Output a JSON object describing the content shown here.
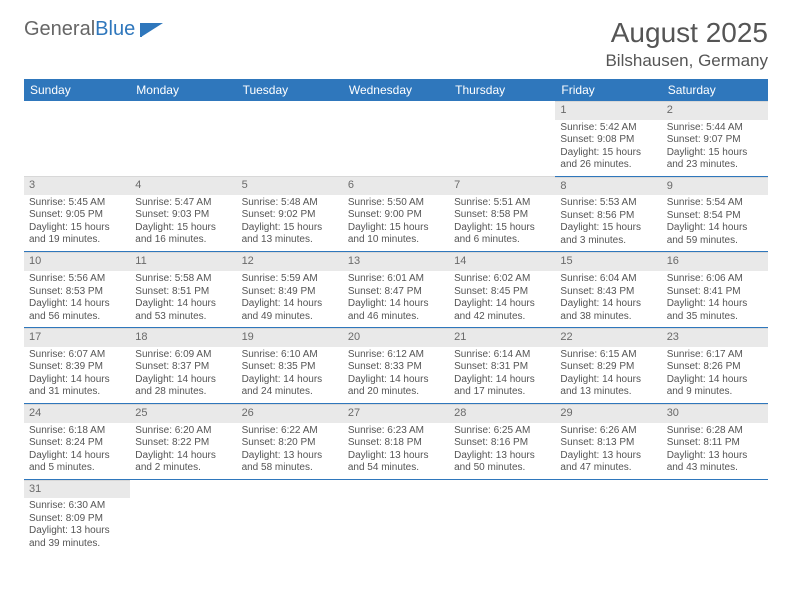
{
  "logo": {
    "text1": "General",
    "text2": "Blue"
  },
  "title": "August 2025",
  "location": "Bilshausen, Germany",
  "colors": {
    "header_bg": "#2f77bc",
    "header_fg": "#ffffff",
    "daynum_bg": "#e9e9e9",
    "row_divider": "#2f77bc",
    "text": "#555555"
  },
  "weekdays": [
    "Sunday",
    "Monday",
    "Tuesday",
    "Wednesday",
    "Thursday",
    "Friday",
    "Saturday"
  ],
  "weeks": [
    [
      null,
      null,
      null,
      null,
      null,
      {
        "n": "1",
        "sr": "Sunrise: 5:42 AM",
        "ss": "Sunset: 9:08 PM",
        "d1": "Daylight: 15 hours",
        "d2": "and 26 minutes."
      },
      {
        "n": "2",
        "sr": "Sunrise: 5:44 AM",
        "ss": "Sunset: 9:07 PM",
        "d1": "Daylight: 15 hours",
        "d2": "and 23 minutes."
      }
    ],
    [
      {
        "n": "3",
        "sr": "Sunrise: 5:45 AM",
        "ss": "Sunset: 9:05 PM",
        "d1": "Daylight: 15 hours",
        "d2": "and 19 minutes."
      },
      {
        "n": "4",
        "sr": "Sunrise: 5:47 AM",
        "ss": "Sunset: 9:03 PM",
        "d1": "Daylight: 15 hours",
        "d2": "and 16 minutes."
      },
      {
        "n": "5",
        "sr": "Sunrise: 5:48 AM",
        "ss": "Sunset: 9:02 PM",
        "d1": "Daylight: 15 hours",
        "d2": "and 13 minutes."
      },
      {
        "n": "6",
        "sr": "Sunrise: 5:50 AM",
        "ss": "Sunset: 9:00 PM",
        "d1": "Daylight: 15 hours",
        "d2": "and 10 minutes."
      },
      {
        "n": "7",
        "sr": "Sunrise: 5:51 AM",
        "ss": "Sunset: 8:58 PM",
        "d1": "Daylight: 15 hours",
        "d2": "and 6 minutes."
      },
      {
        "n": "8",
        "sr": "Sunrise: 5:53 AM",
        "ss": "Sunset: 8:56 PM",
        "d1": "Daylight: 15 hours",
        "d2": "and 3 minutes."
      },
      {
        "n": "9",
        "sr": "Sunrise: 5:54 AM",
        "ss": "Sunset: 8:54 PM",
        "d1": "Daylight: 14 hours",
        "d2": "and 59 minutes."
      }
    ],
    [
      {
        "n": "10",
        "sr": "Sunrise: 5:56 AM",
        "ss": "Sunset: 8:53 PM",
        "d1": "Daylight: 14 hours",
        "d2": "and 56 minutes."
      },
      {
        "n": "11",
        "sr": "Sunrise: 5:58 AM",
        "ss": "Sunset: 8:51 PM",
        "d1": "Daylight: 14 hours",
        "d2": "and 53 minutes."
      },
      {
        "n": "12",
        "sr": "Sunrise: 5:59 AM",
        "ss": "Sunset: 8:49 PM",
        "d1": "Daylight: 14 hours",
        "d2": "and 49 minutes."
      },
      {
        "n": "13",
        "sr": "Sunrise: 6:01 AM",
        "ss": "Sunset: 8:47 PM",
        "d1": "Daylight: 14 hours",
        "d2": "and 46 minutes."
      },
      {
        "n": "14",
        "sr": "Sunrise: 6:02 AM",
        "ss": "Sunset: 8:45 PM",
        "d1": "Daylight: 14 hours",
        "d2": "and 42 minutes."
      },
      {
        "n": "15",
        "sr": "Sunrise: 6:04 AM",
        "ss": "Sunset: 8:43 PM",
        "d1": "Daylight: 14 hours",
        "d2": "and 38 minutes."
      },
      {
        "n": "16",
        "sr": "Sunrise: 6:06 AM",
        "ss": "Sunset: 8:41 PM",
        "d1": "Daylight: 14 hours",
        "d2": "and 35 minutes."
      }
    ],
    [
      {
        "n": "17",
        "sr": "Sunrise: 6:07 AM",
        "ss": "Sunset: 8:39 PM",
        "d1": "Daylight: 14 hours",
        "d2": "and 31 minutes."
      },
      {
        "n": "18",
        "sr": "Sunrise: 6:09 AM",
        "ss": "Sunset: 8:37 PM",
        "d1": "Daylight: 14 hours",
        "d2": "and 28 minutes."
      },
      {
        "n": "19",
        "sr": "Sunrise: 6:10 AM",
        "ss": "Sunset: 8:35 PM",
        "d1": "Daylight: 14 hours",
        "d2": "and 24 minutes."
      },
      {
        "n": "20",
        "sr": "Sunrise: 6:12 AM",
        "ss": "Sunset: 8:33 PM",
        "d1": "Daylight: 14 hours",
        "d2": "and 20 minutes."
      },
      {
        "n": "21",
        "sr": "Sunrise: 6:14 AM",
        "ss": "Sunset: 8:31 PM",
        "d1": "Daylight: 14 hours",
        "d2": "and 17 minutes."
      },
      {
        "n": "22",
        "sr": "Sunrise: 6:15 AM",
        "ss": "Sunset: 8:29 PM",
        "d1": "Daylight: 14 hours",
        "d2": "and 13 minutes."
      },
      {
        "n": "23",
        "sr": "Sunrise: 6:17 AM",
        "ss": "Sunset: 8:26 PM",
        "d1": "Daylight: 14 hours",
        "d2": "and 9 minutes."
      }
    ],
    [
      {
        "n": "24",
        "sr": "Sunrise: 6:18 AM",
        "ss": "Sunset: 8:24 PM",
        "d1": "Daylight: 14 hours",
        "d2": "and 5 minutes."
      },
      {
        "n": "25",
        "sr": "Sunrise: 6:20 AM",
        "ss": "Sunset: 8:22 PM",
        "d1": "Daylight: 14 hours",
        "d2": "and 2 minutes."
      },
      {
        "n": "26",
        "sr": "Sunrise: 6:22 AM",
        "ss": "Sunset: 8:20 PM",
        "d1": "Daylight: 13 hours",
        "d2": "and 58 minutes."
      },
      {
        "n": "27",
        "sr": "Sunrise: 6:23 AM",
        "ss": "Sunset: 8:18 PM",
        "d1": "Daylight: 13 hours",
        "d2": "and 54 minutes."
      },
      {
        "n": "28",
        "sr": "Sunrise: 6:25 AM",
        "ss": "Sunset: 8:16 PM",
        "d1": "Daylight: 13 hours",
        "d2": "and 50 minutes."
      },
      {
        "n": "29",
        "sr": "Sunrise: 6:26 AM",
        "ss": "Sunset: 8:13 PM",
        "d1": "Daylight: 13 hours",
        "d2": "and 47 minutes."
      },
      {
        "n": "30",
        "sr": "Sunrise: 6:28 AM",
        "ss": "Sunset: 8:11 PM",
        "d1": "Daylight: 13 hours",
        "d2": "and 43 minutes."
      }
    ],
    [
      {
        "n": "31",
        "sr": "Sunrise: 6:30 AM",
        "ss": "Sunset: 8:09 PM",
        "d1": "Daylight: 13 hours",
        "d2": "and 39 minutes."
      },
      null,
      null,
      null,
      null,
      null,
      null
    ]
  ]
}
